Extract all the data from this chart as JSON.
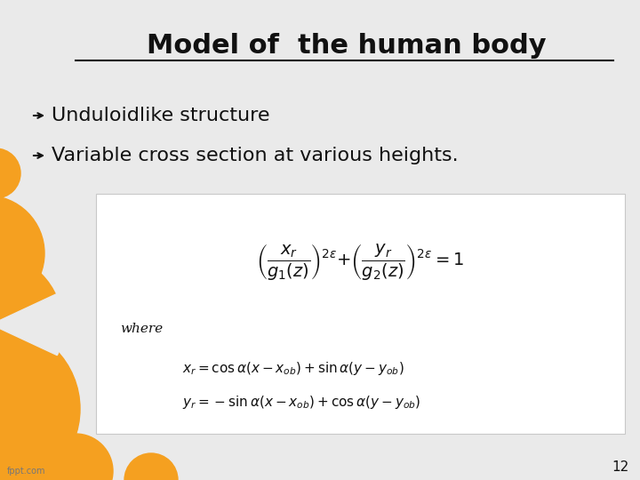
{
  "title": "Model of  the human body",
  "bullet1": "Unduloidlike structure",
  "bullet2": "Variable cross section at various heights.",
  "where_label": "where",
  "page_number": "12",
  "watermark": "fppt.com",
  "bg_color": "#eaeaea",
  "box_color": "#ffffff",
  "orange_color": "#F5A020",
  "title_color": "#111111",
  "text_color": "#111111",
  "title_fontsize": 22,
  "bullet_fontsize": 16,
  "formula_fontsize": 14,
  "sub_formula_fontsize": 11
}
